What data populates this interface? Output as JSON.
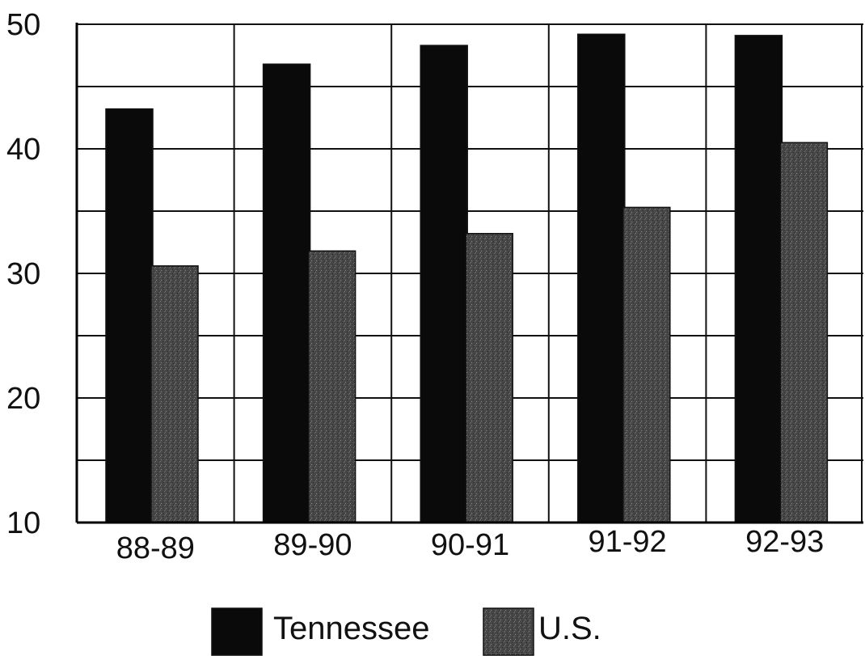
{
  "chart_data": {
    "type": "bar",
    "categories": [
      "88-89",
      "89-90",
      "90-91",
      "91-92",
      "92-93"
    ],
    "series": [
      {
        "name": "Tennessee",
        "values": [
          43.2,
          46.8,
          48.3,
          49.2,
          49.1
        ],
        "color": "#0a0a0a"
      },
      {
        "name": "U.S.",
        "values": [
          30.6,
          31.8,
          33.2,
          35.3,
          40.5
        ],
        "color": "#4a4a4a"
      }
    ],
    "ylim": [
      10,
      50
    ],
    "yticks": [
      10,
      20,
      30,
      40,
      50
    ],
    "grid": true,
    "legend": "bottom"
  }
}
